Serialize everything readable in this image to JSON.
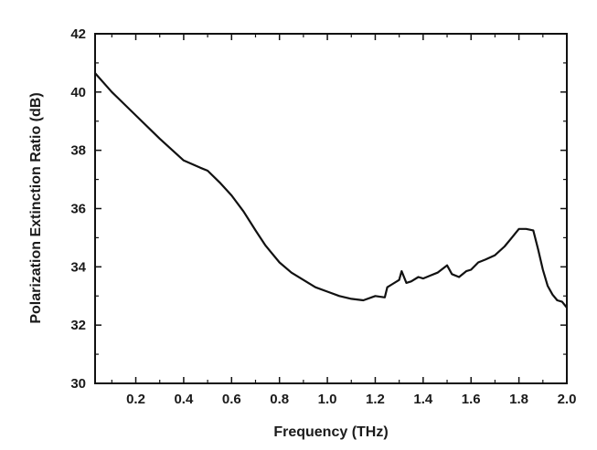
{
  "chart_data": {
    "type": "line",
    "title": "",
    "xlabel": "Frequency (THz)",
    "ylabel": "Polarization Extinction Ratio (dB)",
    "xlim": [
      0.03,
      2.0
    ],
    "ylim": [
      30,
      42
    ],
    "x_ticks": [
      0.2,
      0.4,
      0.6,
      0.8,
      1.0,
      1.2,
      1.4,
      1.6,
      1.8,
      2.0
    ],
    "x_tick_labels": [
      "0.2",
      "0.4",
      "0.6",
      "0.8",
      "1.0",
      "1.2",
      "1.4",
      "1.6",
      "1.8",
      "2.0"
    ],
    "y_ticks": [
      30,
      32,
      34,
      36,
      38,
      40,
      42
    ],
    "y_tick_labels": [
      "30",
      "32",
      "34",
      "36",
      "38",
      "40",
      "42"
    ],
    "grid": false,
    "legend": "none",
    "series": [
      {
        "color": "#111111",
        "x": [
          0.03,
          0.1,
          0.2,
          0.3,
          0.4,
          0.47,
          0.5,
          0.55,
          0.6,
          0.65,
          0.7,
          0.74,
          0.76,
          0.8,
          0.85,
          0.9,
          0.95,
          1.0,
          1.05,
          1.1,
          1.15,
          1.2,
          1.24,
          1.25,
          1.27,
          1.3,
          1.31,
          1.33,
          1.35,
          1.38,
          1.4,
          1.43,
          1.46,
          1.5,
          1.52,
          1.55,
          1.58,
          1.6,
          1.63,
          1.66,
          1.7,
          1.74,
          1.77,
          1.8,
          1.83,
          1.86,
          1.88,
          1.9,
          1.92,
          1.94,
          1.96,
          1.98,
          2.0
        ],
        "y": [
          40.65,
          40.0,
          39.2,
          38.4,
          37.65,
          37.4,
          37.3,
          36.9,
          36.45,
          35.9,
          35.25,
          34.75,
          34.55,
          34.15,
          33.8,
          33.55,
          33.3,
          33.15,
          33.0,
          32.9,
          32.85,
          33.0,
          32.95,
          33.3,
          33.4,
          33.55,
          33.85,
          33.45,
          33.5,
          33.65,
          33.6,
          33.7,
          33.8,
          34.05,
          33.75,
          33.65,
          33.85,
          33.9,
          34.15,
          34.25,
          34.4,
          34.7,
          35.0,
          35.3,
          35.3,
          35.25,
          34.6,
          33.9,
          33.35,
          33.05,
          32.85,
          32.8,
          32.6
        ]
      }
    ]
  }
}
